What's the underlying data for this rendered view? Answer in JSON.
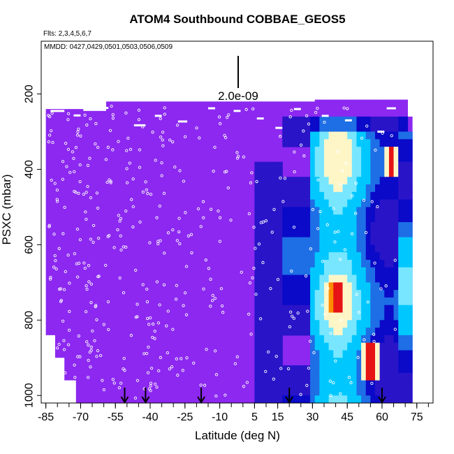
{
  "chart_data": {
    "type": "heatmap",
    "title": "ATOM4 Southbound COBBAE_GEOS5",
    "flights_label": "Flts: 2,3,4,5,6,7",
    "dates_label": "MMDD: 0427,0429,0501,0503,0506,0509",
    "scale_label": "2.0e-09",
    "xlabel": "Latitude (deg N)",
    "ylabel": "PSXC (mbar)",
    "xlim": [
      -87,
      82
    ],
    "ylim": [
      1020,
      60
    ],
    "y_inverted": true,
    "x_ticks": [
      -85,
      -70,
      -55,
      -40,
      -25,
      -10,
      5,
      15,
      30,
      45,
      60,
      75
    ],
    "y_ticks": [
      200,
      400,
      600,
      800,
      1000
    ],
    "arrows_latitude": [
      -51,
      -42,
      -18,
      20,
      60
    ],
    "colors": {
      "background_field": "#8c28f0",
      "low": "#8c28f0",
      "mid_low": "#0a0ac8",
      "mid": "#1e6ee6",
      "mid_high": "#00c8ff",
      "high": "#fff6c8",
      "peak": "#e61414"
    },
    "enhanced_regions": [
      {
        "lat_min": 35,
        "lat_max": 46,
        "p_min": 700,
        "p_max": 780,
        "level": "peak"
      },
      {
        "lat_min": 52,
        "lat_max": 58,
        "p_min": 870,
        "p_max": 950,
        "level": "peak"
      },
      {
        "lat_min": 62,
        "lat_max": 67,
        "p_min": 350,
        "p_max": 420,
        "level": "peak"
      }
    ]
  }
}
